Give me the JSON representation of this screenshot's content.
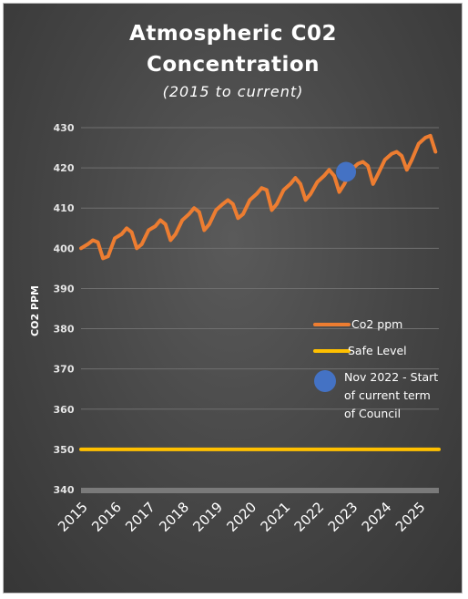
{
  "chart_data": {
    "type": "line",
    "title_line1": "Atmospheric C02",
    "title_line2": "Concentration",
    "subtitle": "(2015 to current)",
    "ylabel": "CO2 PPM",
    "xlabel": "",
    "ylim": [
      340,
      430
    ],
    "y_ticks": [
      340,
      350,
      360,
      370,
      380,
      390,
      400,
      410,
      420,
      430
    ],
    "xlim": [
      2015,
      2025.6
    ],
    "x_ticks": [
      "2015",
      "2016",
      "2017",
      "2018",
      "2019",
      "2020",
      "2021",
      "2022",
      "2023",
      "2024",
      "2025"
    ],
    "grid": true,
    "legend_position": "right",
    "series": [
      {
        "name": "Co2 ppm",
        "color": "#ed7d31",
        "x": [
          2015.0,
          2015.2,
          2015.35,
          2015.5,
          2015.65,
          2015.8,
          2016.0,
          2016.2,
          2016.35,
          2016.5,
          2016.65,
          2016.8,
          2017.0,
          2017.2,
          2017.35,
          2017.5,
          2017.65,
          2017.8,
          2018.0,
          2018.2,
          2018.35,
          2018.5,
          2018.65,
          2018.8,
          2019.0,
          2019.2,
          2019.35,
          2019.5,
          2019.65,
          2019.8,
          2020.0,
          2020.2,
          2020.35,
          2020.5,
          2020.65,
          2020.8,
          2021.0,
          2021.2,
          2021.35,
          2021.5,
          2021.65,
          2021.8,
          2022.0,
          2022.2,
          2022.35,
          2022.5,
          2022.65,
          2022.8,
          2023.0,
          2023.2,
          2023.35,
          2023.5,
          2023.65,
          2023.8,
          2024.0,
          2024.2,
          2024.35,
          2024.5,
          2024.65,
          2024.8,
          2025.0,
          2025.2,
          2025.35,
          2025.5
        ],
        "values": [
          400.0,
          401.0,
          402.0,
          401.5,
          397.5,
          398.0,
          402.5,
          403.5,
          405.0,
          404.0,
          400.0,
          401.0,
          404.5,
          405.5,
          407.0,
          406.0,
          402.0,
          403.5,
          407.0,
          408.5,
          410.0,
          409.0,
          404.5,
          406.0,
          409.5,
          411.0,
          412.0,
          411.0,
          407.5,
          408.5,
          412.0,
          413.5,
          415.0,
          414.5,
          409.5,
          411.0,
          414.5,
          416.0,
          417.5,
          416.0,
          412.0,
          413.5,
          416.5,
          418.0,
          419.5,
          418.0,
          414.0,
          416.0,
          419.5,
          421.0,
          421.5,
          420.5,
          416.0,
          418.5,
          422.0,
          423.5,
          424.0,
          423.0,
          419.5,
          422.0,
          426.0,
          427.5,
          428.0,
          424.0
        ]
      },
      {
        "name": "Safe Level",
        "color": "#ffc000",
        "x": [
          2015.0,
          2025.6
        ],
        "values": [
          350,
          350
        ]
      },
      {
        "name": "Nov 2022 - Start of current term of Council",
        "color": "#4472c4",
        "type": "marker",
        "x": [
          2022.85
        ],
        "values": [
          419
        ]
      }
    ]
  },
  "legend": {
    "co2_label": "Co2 ppm",
    "safe_label": "Safe Level",
    "council_line1": "Nov 2022 - Start",
    "council_line2": "of current term",
    "council_line3": "of Council"
  }
}
